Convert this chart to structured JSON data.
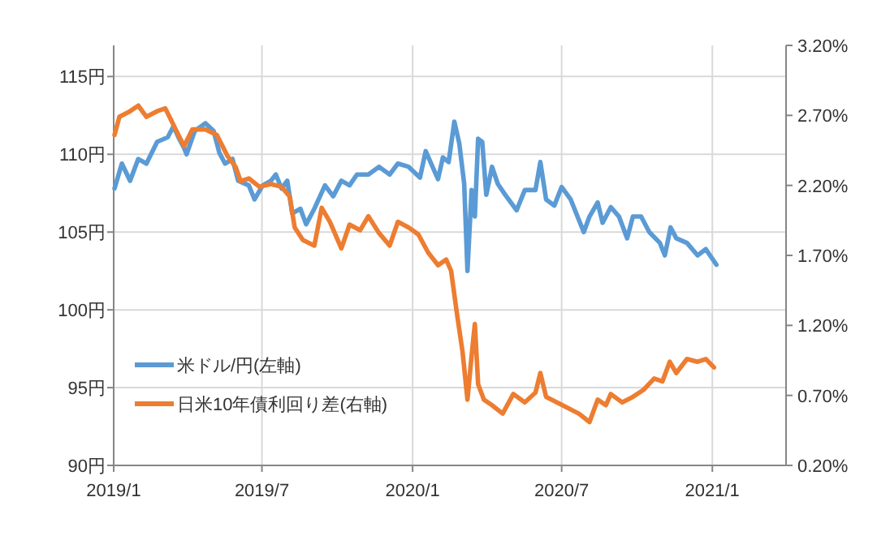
{
  "chart_data": {
    "type": "line",
    "xlim": [
      "2019-01-01",
      "2021-04-01"
    ],
    "xticks": [
      {
        "value": "2019-01-01",
        "label": "2019/1"
      },
      {
        "value": "2019-07-01",
        "label": "2019/7"
      },
      {
        "value": "2020-01-01",
        "label": "2020/1"
      },
      {
        "value": "2020-07-01",
        "label": "2020/7"
      },
      {
        "value": "2021-01-01",
        "label": "2021/1"
      }
    ],
    "ylim": [
      90,
      117
    ],
    "yticks": [
      {
        "value": 90,
        "label": "90円"
      },
      {
        "value": 95,
        "label": "95円"
      },
      {
        "value": 100,
        "label": "100円"
      },
      {
        "value": 105,
        "label": "105円"
      },
      {
        "value": 110,
        "label": "110円"
      },
      {
        "value": 115,
        "label": "115円"
      }
    ],
    "y2lim": [
      0.2,
      3.2
    ],
    "y2ticks": [
      {
        "value": 0.2,
        "label": "0.20%"
      },
      {
        "value": 0.7,
        "label": "0.70%"
      },
      {
        "value": 1.2,
        "label": "1.20%"
      },
      {
        "value": 1.7,
        "label": "1.70%"
      },
      {
        "value": 2.2,
        "label": "2.20%"
      },
      {
        "value": 2.7,
        "label": "2.70%"
      },
      {
        "value": 3.2,
        "label": "3.20%"
      }
    ],
    "grid": true,
    "legend": "bottom left",
    "series": [
      {
        "name": "米ドル/円(左軸)",
        "color": "#5b9bd5",
        "x": [
          "2019-01-02",
          "2019-01-11",
          "2019-01-21",
          "2019-01-31",
          "2019-02-10",
          "2019-02-23",
          "2019-03-08",
          "2019-03-15",
          "2019-03-21",
          "2019-03-28",
          "2019-03-31",
          "2019-04-10",
          "2019-04-23",
          "2019-05-03",
          "2019-05-10",
          "2019-05-17",
          "2019-05-26",
          "2019-06-02",
          "2019-06-15",
          "2019-06-22",
          "2019-07-02",
          "2019-07-12",
          "2019-07-18",
          "2019-07-25",
          "2019-08-01",
          "2019-08-07",
          "2019-08-17",
          "2019-08-24",
          "2019-09-03",
          "2019-09-16",
          "2019-09-26",
          "2019-10-06",
          "2019-10-16",
          "2019-10-25",
          "2019-11-08",
          "2019-11-21",
          "2019-12-04",
          "2019-12-14",
          "2019-12-27",
          "2020-01-10",
          "2020-01-17",
          "2020-02-01",
          "2020-02-07",
          "2020-02-14",
          "2020-02-21",
          "2020-02-27",
          "2020-03-04",
          "2020-03-08",
          "2020-03-13",
          "2020-03-17",
          "2020-03-21",
          "2020-03-26",
          "2020-03-31",
          "2020-04-07",
          "2020-04-14",
          "2020-04-23",
          "2020-05-07",
          "2020-05-17",
          "2020-05-30",
          "2020-06-05",
          "2020-06-12",
          "2020-06-22",
          "2020-07-01",
          "2020-07-12",
          "2020-07-28",
          "2020-08-04",
          "2020-08-14",
          "2020-08-20",
          "2020-08-30",
          "2020-09-09",
          "2020-09-19",
          "2020-09-26",
          "2020-10-06",
          "2020-10-16",
          "2020-10-29",
          "2020-11-04",
          "2020-11-11",
          "2020-11-18",
          "2020-12-01",
          "2020-12-14",
          "2020-12-24",
          "2021-01-06"
        ],
        "axis": "y",
        "values": [
          107.8,
          109.4,
          108.3,
          109.7,
          109.4,
          110.8,
          111.1,
          111.8,
          111.1,
          110.4,
          110.0,
          111.5,
          112.0,
          111.5,
          110.1,
          109.4,
          109.7,
          108.3,
          108.0,
          107.1,
          108.0,
          108.3,
          108.7,
          107.8,
          108.3,
          106.2,
          106.5,
          105.5,
          106.5,
          108.0,
          107.3,
          108.3,
          108.0,
          108.7,
          108.7,
          109.2,
          108.7,
          109.4,
          109.2,
          108.5,
          110.2,
          108.4,
          109.8,
          109.5,
          112.1,
          110.7,
          108.1,
          102.5,
          107.7,
          106.0,
          111.0,
          110.8,
          107.4,
          109.2,
          108.1,
          107.4,
          106.4,
          107.7,
          107.7,
          109.5,
          107.1,
          106.7,
          107.9,
          107.1,
          105.0,
          106.0,
          106.9,
          105.6,
          106.6,
          106.0,
          104.6,
          106.0,
          106.0,
          105.0,
          104.3,
          103.5,
          105.3,
          104.6,
          104.3,
          103.5,
          103.9,
          102.9
        ]
      },
      {
        "name": "日米10年債利回り差(右軸)",
        "color": "#ed7d31",
        "axis": "y2",
        "x": [
          "2019-01-02",
          "2019-01-08",
          "2019-01-21",
          "2019-01-31",
          "2019-02-10",
          "2019-02-23",
          "2019-03-05",
          "2019-03-11",
          "2019-03-21",
          "2019-03-28",
          "2019-04-07",
          "2019-04-23",
          "2019-05-07",
          "2019-05-20",
          "2019-05-30",
          "2019-06-05",
          "2019-06-15",
          "2019-06-28",
          "2019-07-12",
          "2019-07-25",
          "2019-08-04",
          "2019-08-10",
          "2019-08-20",
          "2019-09-03",
          "2019-09-12",
          "2019-09-22",
          "2019-10-06",
          "2019-10-16",
          "2019-10-29",
          "2019-11-08",
          "2019-11-21",
          "2019-12-04",
          "2019-12-14",
          "2019-12-27",
          "2020-01-08",
          "2020-01-20",
          "2020-02-01",
          "2020-02-11",
          "2020-02-17",
          "2020-02-24",
          "2020-03-02",
          "2020-03-08",
          "2020-03-13",
          "2020-03-17",
          "2020-03-21",
          "2020-03-28",
          "2020-04-07",
          "2020-04-20",
          "2020-05-03",
          "2020-05-17",
          "2020-05-30",
          "2020-06-05",
          "2020-06-12",
          "2020-07-02",
          "2020-07-22",
          "2020-08-04",
          "2020-08-14",
          "2020-08-24",
          "2020-08-30",
          "2020-09-13",
          "2020-09-26",
          "2020-10-09",
          "2020-10-22",
          "2020-11-01",
          "2020-11-10",
          "2020-11-18",
          "2020-12-01",
          "2020-12-14",
          "2020-12-24",
          "2021-01-03"
        ],
        "values": [
          2.56,
          2.69,
          2.73,
          2.77,
          2.69,
          2.73,
          2.75,
          2.68,
          2.56,
          2.48,
          2.6,
          2.6,
          2.56,
          2.41,
          2.33,
          2.23,
          2.25,
          2.19,
          2.21,
          2.19,
          2.12,
          1.9,
          1.81,
          1.77,
          2.04,
          1.94,
          1.75,
          1.92,
          1.88,
          1.98,
          1.86,
          1.77,
          1.94,
          1.9,
          1.85,
          1.72,
          1.63,
          1.67,
          1.59,
          1.29,
          1.01,
          0.67,
          0.98,
          1.21,
          0.78,
          0.67,
          0.63,
          0.57,
          0.71,
          0.65,
          0.72,
          0.86,
          0.69,
          0.63,
          0.57,
          0.51,
          0.67,
          0.63,
          0.71,
          0.65,
          0.69,
          0.74,
          0.82,
          0.8,
          0.94,
          0.86,
          0.96,
          0.94,
          0.96,
          0.9
        ]
      }
    ]
  }
}
